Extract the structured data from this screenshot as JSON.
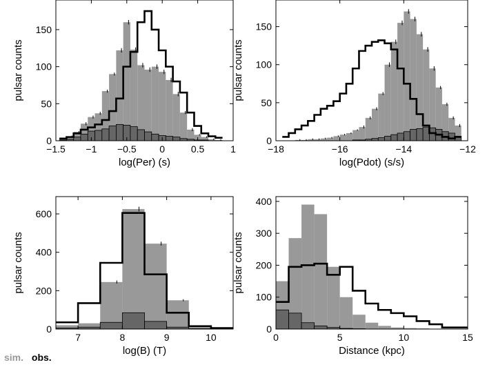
{
  "legend": {
    "sim_label": "sim.",
    "obs_label": "obs."
  },
  "colors": {
    "sim_fill": "#999999",
    "obs_fill": "#666666",
    "model_line": "#000000",
    "axis": "#000000"
  },
  "chart_data": [
    {
      "type": "bar",
      "id": "period",
      "xlabel": "log(Per) (s)",
      "ylabel": "pulsar counts",
      "xlim": [
        -1.5,
        1
      ],
      "ylim": [
        0,
        190
      ],
      "xticks": [
        -1.5,
        -1,
        -0.5,
        0,
        0.5,
        1
      ],
      "xtick_labels": [
        "−1.5",
        "−1",
        "−0.5",
        "0",
        "0.5",
        "1"
      ],
      "yticks": [
        0,
        50,
        100,
        150
      ],
      "ytick_labels": [
        "0",
        "50",
        "100",
        "150"
      ],
      "bin_edges": [
        -1.45,
        -1.35,
        -1.25,
        -1.15,
        -1.05,
        -0.95,
        -0.85,
        -0.75,
        -0.65,
        -0.55,
        -0.45,
        -0.35,
        -0.25,
        -0.15,
        -0.05,
        0.05,
        0.15,
        0.25,
        0.35,
        0.45,
        0.55,
        0.65,
        0.75,
        0.85
      ],
      "series": [
        {
          "values": [
            3,
            6,
            12,
            23,
            32,
            37,
            67,
            90,
            122,
            160,
            123,
            102,
            96,
            100,
            93,
            82,
            63,
            38,
            15,
            8,
            5,
            2,
            1
          ],
          "error": [
            1,
            1,
            1,
            2,
            2,
            2,
            2,
            2,
            3,
            3,
            3,
            3,
            3,
            3,
            3,
            3,
            3,
            2,
            2,
            1,
            1,
            1,
            1
          ]
        },
        {
          "values": [
            1,
            2,
            5,
            9,
            13,
            14,
            16,
            20,
            22,
            21,
            19,
            15,
            12,
            9,
            7,
            6,
            5,
            3,
            2,
            1,
            1,
            0,
            0
          ]
        },
        {
          "values": [
            3,
            5,
            10,
            15,
            18,
            22,
            28,
            40,
            57,
            100,
            120,
            160,
            175,
            150,
            122,
            100,
            80,
            65,
            38,
            20,
            10,
            6,
            4
          ]
        }
      ]
    },
    {
      "type": "bar",
      "id": "pdot",
      "xlabel": "log(Pdot) (s/s)",
      "ylabel": "pulsar counts",
      "xlim": [
        -18,
        -12
      ],
      "ylim": [
        0,
        185
      ],
      "xticks": [
        -18,
        -16,
        -14,
        -12
      ],
      "xtick_labels": [
        "−18",
        "−16",
        "−14",
        "−12"
      ],
      "yticks": [
        0,
        50,
        100,
        150
      ],
      "ytick_labels": [
        "0",
        "50",
        "100",
        "150"
      ],
      "bin_edges": [
        -17.8,
        -17.6,
        -17.4,
        -17.2,
        -17.0,
        -16.8,
        -16.6,
        -16.4,
        -16.2,
        -16.0,
        -15.8,
        -15.6,
        -15.4,
        -15.2,
        -15.0,
        -14.8,
        -14.6,
        -14.4,
        -14.2,
        -14.0,
        -13.8,
        -13.6,
        -13.4,
        -13.2,
        -13.0,
        -12.8,
        -12.6,
        -12.4,
        -12.2
      ],
      "series": [
        {
          "values": [
            0,
            0,
            1,
            1,
            2,
            2,
            3,
            4,
            6,
            8,
            10,
            14,
            18,
            30,
            42,
            62,
            100,
            130,
            155,
            170,
            160,
            140,
            120,
            95,
            70,
            48,
            30,
            20
          ],
          "error": [
            0,
            0,
            1,
            1,
            1,
            1,
            1,
            1,
            1,
            1,
            1,
            1,
            2,
            2,
            2,
            2,
            3,
            3,
            3,
            3,
            3,
            3,
            3,
            3,
            2,
            2,
            2,
            2
          ]
        },
        {
          "values": [
            0,
            0,
            0,
            0,
            0,
            0,
            0,
            0,
            0,
            0,
            0,
            1,
            1,
            2,
            3,
            4,
            6,
            8,
            10,
            12,
            15,
            16,
            18,
            17,
            15,
            12,
            10,
            6
          ]
        },
        {
          "values": [
            5,
            10,
            15,
            20,
            26,
            34,
            42,
            46,
            52,
            62,
            75,
            95,
            118,
            125,
            130,
            132,
            128,
            120,
            95,
            75,
            55,
            35,
            20,
            10,
            8,
            5,
            3,
            5
          ]
        }
      ]
    },
    {
      "type": "bar",
      "id": "field",
      "xlabel": "log(B) (T)",
      "ylabel": "pulsar counts",
      "xlim": [
        6.5,
        10.5
      ],
      "ylim": [
        0,
        690
      ],
      "xticks": [
        7,
        8,
        9,
        10
      ],
      "xtick_labels": [
        "7",
        "8",
        "9",
        "10"
      ],
      "yticks": [
        0,
        200,
        400,
        600
      ],
      "ytick_labels": [
        "0",
        "200",
        "400",
        "600"
      ],
      "bin_edges": [
        6.5,
        7.0,
        7.5,
        8.0,
        8.5,
        9.0,
        9.5,
        10.0,
        10.5
      ],
      "series": [
        {
          "values": [
            20,
            30,
            245,
            625,
            445,
            150,
            10,
            2
          ],
          "error": [
            0,
            0,
            8,
            12,
            10,
            5,
            0,
            0
          ]
        },
        {
          "values": [
            5,
            10,
            35,
            85,
            40,
            10,
            2,
            0
          ]
        },
        {
          "values": [
            35,
            135,
            345,
            605,
            285,
            85,
            15,
            5
          ]
        }
      ]
    },
    {
      "type": "bar",
      "id": "distance",
      "xlabel": "Distance (kpc)",
      "ylabel": "pulsar counts",
      "xlim": [
        0,
        15
      ],
      "ylim": [
        0,
        415
      ],
      "xticks": [
        0,
        5,
        10,
        15
      ],
      "xtick_labels": [
        "0",
        "5",
        "10",
        "15"
      ],
      "yticks": [
        0,
        100,
        200,
        300,
        400
      ],
      "ytick_labels": [
        "0",
        "100",
        "200",
        "300",
        "400"
      ],
      "bin_edges": [
        0,
        1,
        2,
        3,
        4,
        5,
        6,
        7,
        8,
        9,
        10,
        11,
        12,
        13,
        14,
        15
      ],
      "series": [
        {
          "values": [
            150,
            285,
            390,
            360,
            195,
            100,
            45,
            20,
            10,
            5,
            3,
            2,
            1,
            0,
            0
          ],
          "error": [
            0,
            0,
            0,
            0,
            0,
            0,
            0,
            0,
            0,
            0,
            0,
            0,
            0,
            0,
            0
          ]
        },
        {
          "values": [
            60,
            50,
            20,
            10,
            5,
            2,
            1,
            0,
            0,
            0,
            0,
            0,
            0,
            0,
            0
          ]
        },
        {
          "values": [
            85,
            195,
            200,
            205,
            170,
            195,
            120,
            80,
            60,
            50,
            40,
            25,
            15,
            5,
            5
          ]
        }
      ]
    }
  ]
}
